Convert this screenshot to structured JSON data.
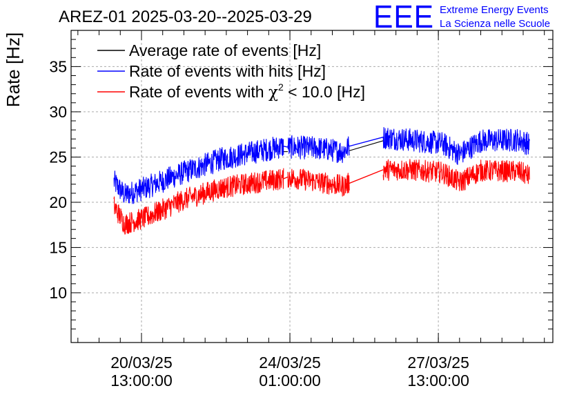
{
  "header": {
    "title": "AREZ-01 2025-03-20--2025-03-29",
    "logo_text": "EEE",
    "org_line1": "Extreme Energy Events",
    "org_line2": "La Scienza nelle Scuole"
  },
  "colors": {
    "average": "#000000",
    "hits": "#0000ff",
    "chi2": "#ff0000",
    "logo": "#0000ff",
    "grid": "#aaaaaa"
  },
  "chart_data": {
    "type": "line",
    "title": "AREZ-01 2025-03-20--2025-03-29",
    "ylabel": "Rate [Hz]",
    "xlabel": "",
    "ylim": [
      4.5,
      39
    ],
    "yticks": [
      10,
      15,
      20,
      25,
      30,
      35
    ],
    "grid": true,
    "legend_position": "top-left",
    "x_tick_labels": [
      {
        "date": "20/03/25",
        "time": "13:00:00",
        "day": 0.5
      },
      {
        "date": "24/03/25",
        "time": "01:00:00",
        "day": 4.0
      },
      {
        "date": "27/03/25",
        "time": "13:00:00",
        "day": 7.5
      }
    ],
    "x_day_range": [
      -1.16,
      10.2
    ],
    "legend": {
      "average": "Average rate of events [Hz]",
      "hits": "Rate of events with hits [Hz]",
      "chi2_prefix": "Rate of events with ",
      "chi2_symbol": "χ",
      "chi2_exp": "2",
      "chi2_suffix": " < 10.0 [Hz]"
    },
    "series": [
      {
        "key": "hits",
        "name": "Rate of events with hits [Hz]",
        "noise": 1.3,
        "segments": [
          [
            [
              -0.15,
              22.3
            ],
            [
              0.1,
              20.8
            ],
            [
              0.6,
              21.6
            ],
            [
              1.5,
              23.3
            ],
            [
              2.4,
              24.8
            ],
            [
              3.2,
              25.6
            ],
            [
              3.85,
              26.2
            ]
          ],
          [
            [
              3.95,
              26.1
            ],
            [
              4.6,
              26.0
            ],
            [
              5.25,
              25.6
            ],
            [
              5.4,
              26.2
            ]
          ],
          [
            [
              6.2,
              27.2
            ],
            [
              6.8,
              26.9
            ],
            [
              7.6,
              26.5
            ],
            [
              8.0,
              25.3
            ],
            [
              8.5,
              26.8
            ],
            [
              9.4,
              26.9
            ],
            [
              9.65,
              26.4
            ]
          ]
        ]
      },
      {
        "key": "average",
        "name": "Average rate of events [Hz]",
        "noise": 0.0,
        "segments": [
          [
            [
              3.85,
              25.6
            ],
            [
              3.95,
              25.6
            ]
          ],
          [
            [
              5.4,
              25.7
            ],
            [
              6.2,
              26.8
            ]
          ]
        ]
      },
      {
        "key": "chi2",
        "name": "Rate of events with χ2 < 10.0 [Hz]",
        "noise": 1.2,
        "segments": [
          [
            [
              -0.15,
              19.6
            ],
            [
              0.1,
              17.6
            ],
            [
              0.6,
              18.3
            ],
            [
              1.5,
              20.3
            ],
            [
              2.4,
              21.6
            ],
            [
              3.2,
              22.2
            ],
            [
              3.85,
              22.6
            ]
          ],
          [
            [
              3.95,
              22.8
            ],
            [
              4.6,
              22.3
            ],
            [
              5.25,
              21.8
            ],
            [
              5.4,
              22.1
            ]
          ],
          [
            [
              6.2,
              23.6
            ],
            [
              6.8,
              23.6
            ],
            [
              7.6,
              23.3
            ],
            [
              8.0,
              22.2
            ],
            [
              8.5,
              23.5
            ],
            [
              9.4,
              23.4
            ],
            [
              9.65,
              22.9
            ]
          ]
        ]
      }
    ]
  }
}
